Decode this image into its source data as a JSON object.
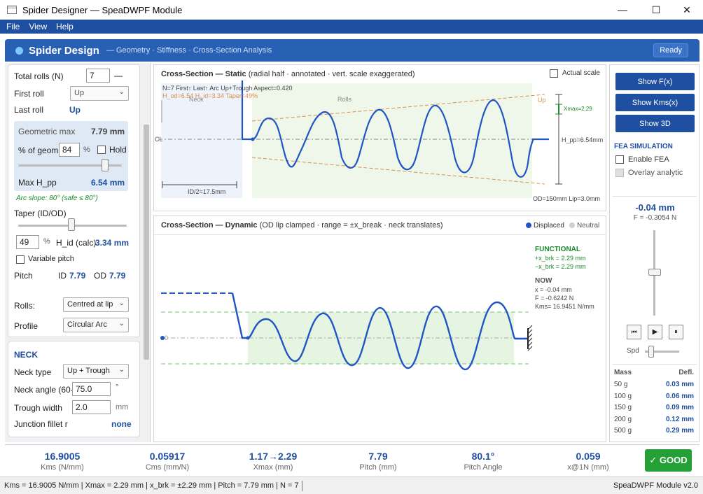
{
  "window": {
    "title": "Spider Designer — SpeaDWPF Module",
    "minimize": "—",
    "maximize": "☐",
    "close": "✕"
  },
  "menu": [
    "File",
    "View",
    "Help"
  ],
  "header": {
    "title": "Spider Design",
    "subtitle": "— Geometry · Stiffness · Cross-Section Analysis",
    "status": "Ready"
  },
  "left": {
    "total_rolls_label": "Total rolls (N)",
    "total_rolls_value": "7",
    "total_rolls_dash": "—",
    "first_roll_label": "First roll",
    "first_roll_value": "Up",
    "last_roll_label": "Last roll",
    "last_roll_value": "Up",
    "geometric_max_label": "Geometric max",
    "geometric_max_value": "7.79 mm",
    "pct_geom_label": "% of geom",
    "pct_geom_value": "84",
    "pct_unit": "%",
    "hold_label": "Hold",
    "pct_slider": 0.84,
    "max_hpp_label": "Max H_pp",
    "max_hpp_value": "6.54 mm",
    "arc_slope_note": "Arc slope: 80°  (safe ≤ 80°)",
    "taper_label": "Taper (ID/OD)",
    "taper_slider": 0.49,
    "taper_value": "49",
    "taper_unit": "%",
    "hid_label": "H_id (calc)",
    "hid_value": "3.34 mm",
    "variable_pitch_label": "Variable pitch",
    "pitch_label": "Pitch",
    "pitch_id_label": "ID",
    "pitch_id_value": "7.79",
    "pitch_od_label": "OD",
    "pitch_od_value": "7.79",
    "rolls_label": "Rolls:",
    "rolls_value": "Centred at lip",
    "profile_label": "Profile",
    "profile_value": "Circular Arc",
    "neck_heading": "NECK",
    "neck_type_label": "Neck type",
    "neck_type_value": "Up + Trough",
    "neck_angle_label": "Neck angle (60-",
    "neck_angle_value": "75.0",
    "neck_angle_unit": "°",
    "trough_width_label": "Trough width",
    "trough_width_value": "2.0",
    "trough_width_unit": "mm",
    "junction_fillet_label": "Junction fillet r",
    "junction_fillet_value": "none"
  },
  "static_panel": {
    "title": "Cross-Section — Static",
    "title_note": "(radial half · annotated · vert. scale exaggerated)",
    "actual_scale_label": "Actual scale",
    "info_line1": "N=7  First↑  Last↑  Arc  Up+Trough  Aspect=0.420",
    "info_line2": "H_od=6.54  H_id=3.34  Taper=49%",
    "neck_label": "Neck",
    "rolls_label": "Rolls",
    "up_label": "Up",
    "cl_label": "CL",
    "xmax_label": "Xmax=2.29",
    "hpp_label": "H_pp=6.54mm",
    "id2_label": "ID/2=17.5mm",
    "od_lip_label": "OD=150mm  Lip=3.0mm"
  },
  "dynamic_panel": {
    "title": "Cross-Section — Dynamic",
    "title_note": "(OD lip clamped · range = ±x_break · neck translates)",
    "legend_displaced": "Displaced",
    "legend_neutral": "Neutral",
    "zero_label": "0",
    "functional_heading": "FUNCTIONAL",
    "functional_line1": "+x_brk = 2.29 mm",
    "functional_line2": "−x_brk = 2.29 mm",
    "now_heading": "NOW",
    "now_x": "x  = -0.04 mm",
    "now_f": "F  = -0.6242 N",
    "now_kms": "Kms= 16.9451 N/mm"
  },
  "right": {
    "btn_fx": "Show F(x)",
    "btn_kms": "Show Kms(x)",
    "btn_3d": "Show 3D",
    "fea_heading": "FEA SIMULATION",
    "enable_fea_label": "Enable FEA",
    "overlay_label": "Overlay analytic",
    "disp_value": "-0.04 mm",
    "force_value": "F = -0.3054 N",
    "disp_slider": 0.49,
    "spd_label": "Spd",
    "mass_header": "Mass",
    "defl_header": "Defl.",
    "mass_rows": [
      {
        "mass": "50 g",
        "defl": "0.03 mm"
      },
      {
        "mass": "100 g",
        "defl": "0.06 mm"
      },
      {
        "mass": "150 g",
        "defl": "0.09 mm"
      },
      {
        "mass": "200 g",
        "defl": "0.12 mm"
      },
      {
        "mass": "500 g",
        "defl": "0.29 mm"
      }
    ]
  },
  "metrics": [
    {
      "value": "16.9005",
      "label": "Kms (N/mm)"
    },
    {
      "value": "0.05917",
      "label": "Cms (mm/N)"
    },
    {
      "value": "1.17→2.29",
      "label": "Xmax (mm)"
    },
    {
      "value": "7.79",
      "label": "Pitch (mm)"
    },
    {
      "value": "80.1°",
      "label": "Pitch Angle"
    },
    {
      "value": "0.059",
      "label": "x@1N (mm)"
    }
  ],
  "good_label": "✓ GOOD",
  "statusbar": {
    "left": "Kms = 16.9005 N/mm  |  Xmax = 2.29 mm  |  x_brk = ±2.29 mm  |  Pitch = 7.79 mm  |  N = 7",
    "right": "SpeaDWPF Module v2.0"
  },
  "colors": {
    "accent": "#1f4fa0",
    "header": "#2860b4",
    "good": "#24a037",
    "curve": "#1f55c4",
    "taper_line": "#d9904a",
    "functional": "#1a8a2a"
  }
}
